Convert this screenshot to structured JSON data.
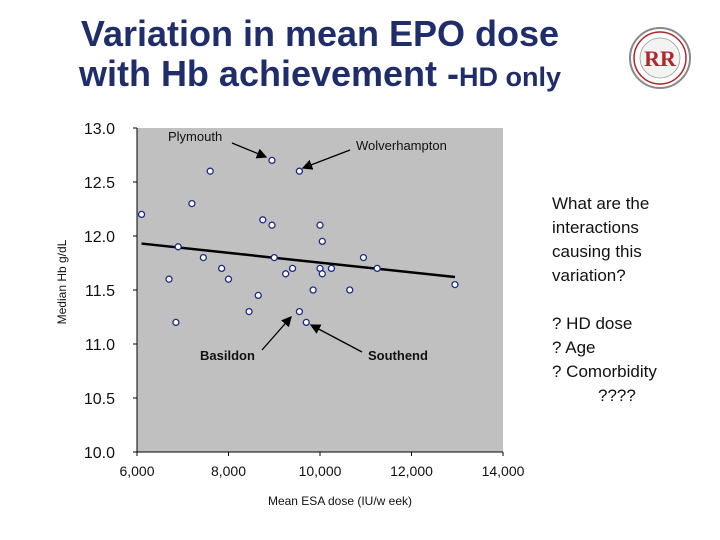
{
  "slide": {
    "title_line1": "Variation in mean EPO dose",
    "title_line2_main": "with Hb achievement -",
    "title_line2_small": "HD only",
    "question": "What are the interactions causing this variation?",
    "factors": [
      "? HD dose",
      "? Age",
      "? Comorbidity",
      "????"
    ],
    "logo_text": "RR"
  },
  "colors": {
    "title": "#1f2d6b",
    "plot_bg": "#c0c0c0",
    "marker_stroke": "#1a2a8c",
    "logo_red": "#b0262a"
  },
  "chart_data": {
    "type": "scatter",
    "xlabel": "Mean ESA dose (IU/w eek)",
    "ylabel": "Median Hb g/dL",
    "xlim": [
      6000,
      14000
    ],
    "ylim": [
      10.0,
      13.0
    ],
    "x_ticks": [
      "6,000",
      "8,000",
      "10,000",
      "12,000",
      "14,000"
    ],
    "x_tick_values": [
      6000,
      8000,
      10000,
      12000,
      14000
    ],
    "y_ticks": [
      "13.0",
      "12.5",
      "12.0",
      "11.5",
      "11.0",
      "10.5",
      "10.0"
    ],
    "y_tick_values": [
      13.0,
      12.5,
      12.0,
      11.5,
      11.0,
      10.5,
      10.0
    ],
    "grid": false,
    "points": [
      {
        "x": 6100,
        "y": 12.2
      },
      {
        "x": 6700,
        "y": 11.6
      },
      {
        "x": 6850,
        "y": 11.2
      },
      {
        "x": 6900,
        "y": 11.9
      },
      {
        "x": 7200,
        "y": 12.3
      },
      {
        "x": 7450,
        "y": 11.8
      },
      {
        "x": 7600,
        "y": 12.6
      },
      {
        "x": 7850,
        "y": 11.7
      },
      {
        "x": 8000,
        "y": 11.6
      },
      {
        "x": 8450,
        "y": 11.3
      },
      {
        "x": 8650,
        "y": 11.45
      },
      {
        "x": 8750,
        "y": 12.15
      },
      {
        "x": 8950,
        "y": 12.1
      },
      {
        "x": 8950,
        "y": 12.7
      },
      {
        "x": 9000,
        "y": 11.8
      },
      {
        "x": 9250,
        "y": 11.65
      },
      {
        "x": 9400,
        "y": 11.7
      },
      {
        "x": 9550,
        "y": 11.3
      },
      {
        "x": 9550,
        "y": 12.6
      },
      {
        "x": 9700,
        "y": 11.2
      },
      {
        "x": 9850,
        "y": 11.5
      },
      {
        "x": 10000,
        "y": 11.7
      },
      {
        "x": 10000,
        "y": 12.1
      },
      {
        "x": 10050,
        "y": 11.95
      },
      {
        "x": 10050,
        "y": 11.65
      },
      {
        "x": 10250,
        "y": 11.7
      },
      {
        "x": 10650,
        "y": 11.5
      },
      {
        "x": 10950,
        "y": 11.8
      },
      {
        "x": 11250,
        "y": 11.7
      },
      {
        "x": 12950,
        "y": 11.55
      }
    ],
    "trendline": {
      "x": [
        6100,
        12950
      ],
      "y": [
        11.93,
        11.62
      ]
    },
    "annotations": [
      {
        "label": "Plymouth",
        "target_x": 8950,
        "target_y": 12.7
      },
      {
        "label": "Wolverhampton",
        "target_x": 9550,
        "target_y": 12.6
      },
      {
        "label": "Basildon",
        "target_x": 9550,
        "target_y": 11.3
      },
      {
        "label": "Southend",
        "target_x": 9700,
        "target_y": 11.2
      }
    ]
  }
}
